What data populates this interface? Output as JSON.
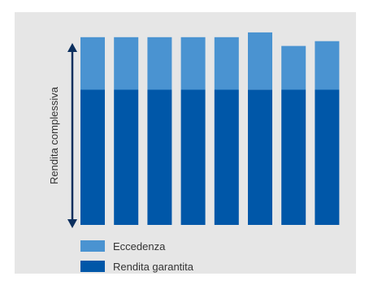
{
  "colors": {
    "background": "#e6e6e6",
    "guaranteed": "#0057a8",
    "excess": "#4a93d1",
    "arrow": "#0b2f5e",
    "text": "#333333"
  },
  "chart_data": {
    "type": "bar",
    "stacked": true,
    "categories": [
      "",
      "",
      "",
      "",
      "",
      "",
      "",
      ""
    ],
    "series": [
      {
        "name": "Rendita garantita",
        "values": [
          170,
          170,
          170,
          170,
          170,
          170,
          170,
          170
        ]
      },
      {
        "name": "Eccedenza",
        "values": [
          66,
          66,
          66,
          66,
          66,
          72,
          55,
          61
        ]
      }
    ],
    "ylim": [
      0,
      245
    ],
    "ylabel": "Rendita complessiva",
    "xlabel": "",
    "grid": false,
    "axis_ticks": false,
    "legend_position": "bottom-left"
  },
  "legend": [
    {
      "label": "Eccedenza",
      "color": "#4a93d1"
    },
    {
      "label": "Rendita garantita",
      "color": "#0057a8"
    }
  ]
}
